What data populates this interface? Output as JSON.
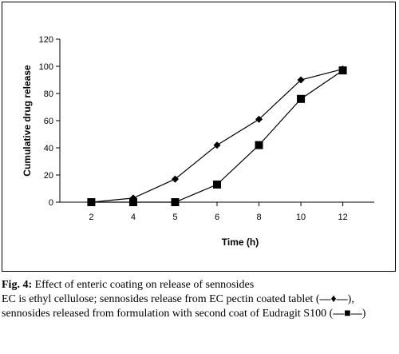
{
  "chart_data": {
    "type": "line",
    "categories": [
      "2",
      "4",
      "5",
      "6",
      "8",
      "10",
      "12"
    ],
    "ylabel": "Cumulative drug release",
    "xlabel": "Time (h)",
    "ylim": [
      0,
      120
    ],
    "yticks": [
      0,
      20,
      40,
      60,
      80,
      100,
      120
    ],
    "grid": false,
    "series": [
      {
        "marker": "diamond",
        "color": "#000000",
        "values": [
          0,
          3,
          17,
          42,
          61,
          90,
          98
        ]
      },
      {
        "marker": "square",
        "color": "#000000",
        "values": [
          0,
          0,
          0,
          13,
          42,
          76,
          97
        ]
      }
    ]
  },
  "caption": {
    "label": "Fig. 4:",
    "title": " Effect of enteric coating on release of sennosides",
    "body_part1": "EC is ethyl cellulose; sennosides release from EC pectin coated tablet (",
    "marker1": "—♦—",
    "body_part2": "), sennosides released from formulation with second coat of Eudragit S100 (",
    "marker2": "—■—",
    "body_part3": ")"
  }
}
